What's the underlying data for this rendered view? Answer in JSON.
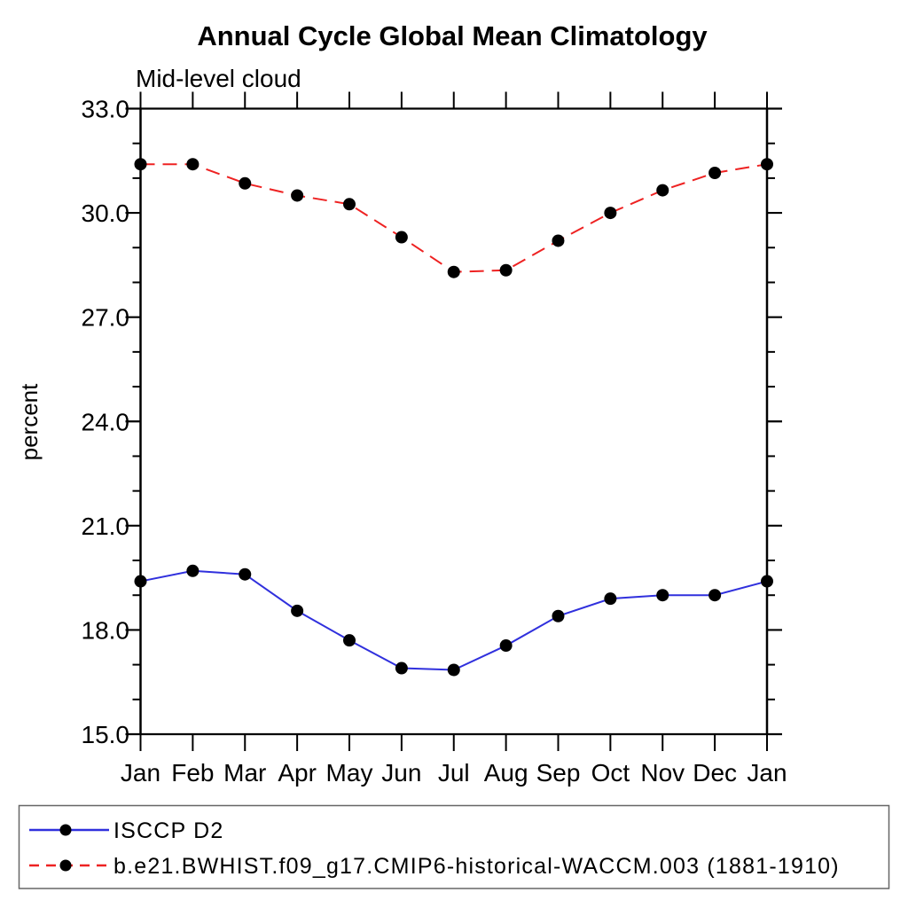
{
  "chart_data": {
    "type": "line",
    "title": "Annual Cycle Global Mean Climatology",
    "subtitle": "Mid-level cloud",
    "ylabel": "percent",
    "xlabel": "",
    "categories": [
      "Jan",
      "Feb",
      "Mar",
      "Apr",
      "May",
      "Jun",
      "Jul",
      "Aug",
      "Sep",
      "Oct",
      "Nov",
      "Dec",
      "Jan"
    ],
    "ylim": [
      15.0,
      33.0
    ],
    "yticks_major": [
      15.0,
      18.0,
      21.0,
      24.0,
      27.0,
      30.0,
      33.0
    ],
    "ytick_labels": [
      "15.0",
      "18.0",
      "21.0",
      "24.0",
      "27.0",
      "30.0",
      "33.0"
    ],
    "ytick_minor_step": 1.0,
    "grid": false,
    "legend_position": "bottom-box",
    "marker": "filled-circle",
    "marker_color": "#000000",
    "series": [
      {
        "name": "ISCCP D2",
        "color": "#3030dd",
        "style": "solid",
        "values": [
          19.4,
          19.7,
          19.6,
          18.55,
          17.7,
          16.9,
          16.85,
          17.55,
          18.4,
          18.9,
          19.0,
          19.0,
          19.4
        ]
      },
      {
        "name": "b.e21.BWHIST.f09_g17.CMIP6-historical-WACCM.003 (1881-1910)",
        "color": "#ee2222",
        "style": "dashed",
        "values": [
          31.4,
          31.4,
          30.85,
          30.5,
          30.25,
          29.3,
          28.3,
          28.35,
          29.2,
          30.0,
          30.65,
          31.15,
          31.4
        ]
      }
    ]
  }
}
